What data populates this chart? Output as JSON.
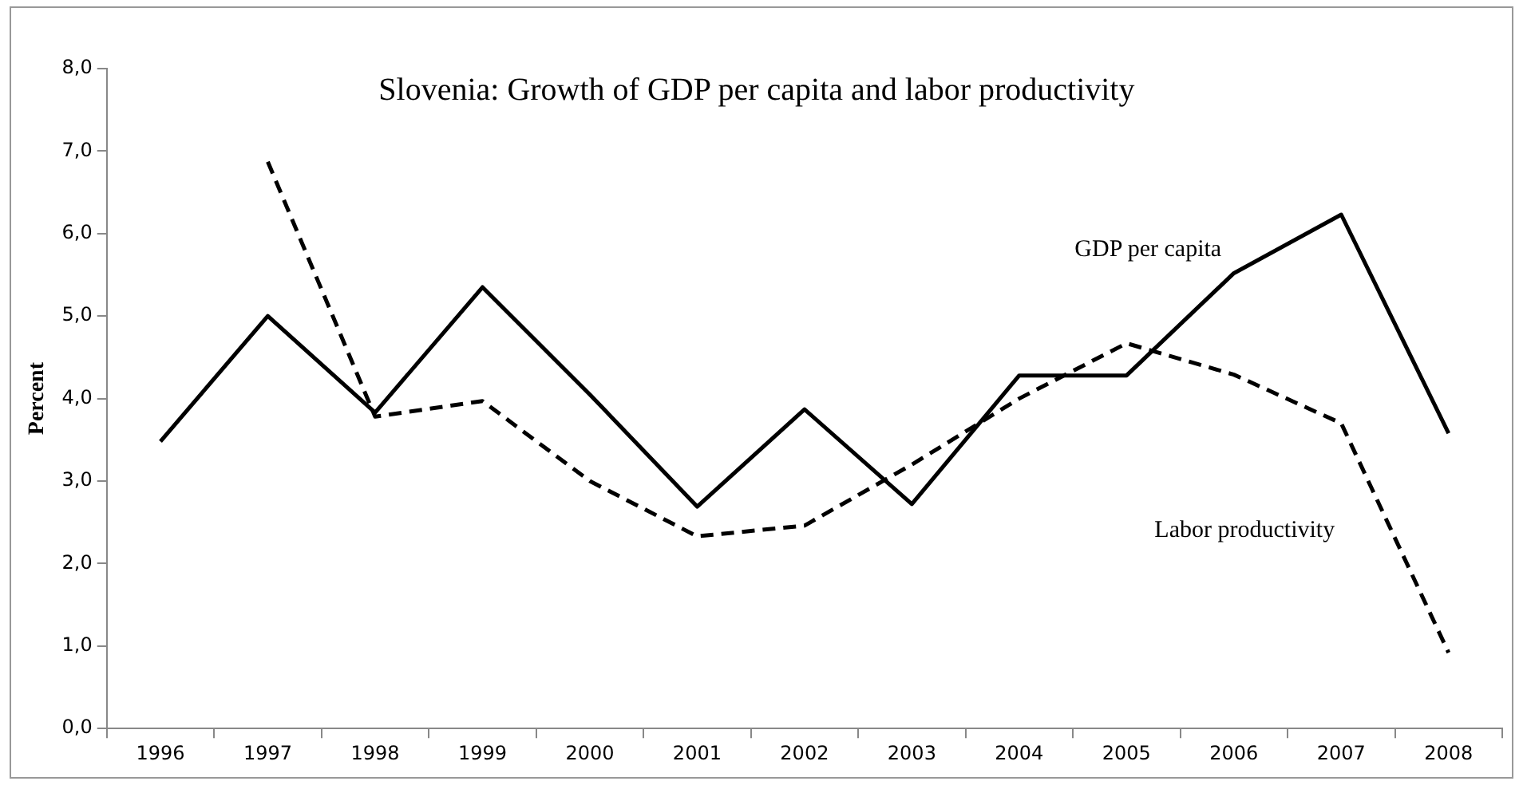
{
  "chart_data": {
    "type": "line",
    "title": "Slovenia: Growth of GDP per capita and labor productivity",
    "ylabel": "Percent",
    "categories": [
      "1996",
      "1997",
      "1998",
      "1999",
      "2000",
      "2001",
      "2002",
      "2003",
      "2004",
      "2005",
      "2006",
      "2007",
      "2008"
    ],
    "series": [
      {
        "name": "GDP per capita",
        "color": "#000000",
        "line_style": "solid",
        "values": [
          3.48,
          5.0,
          3.83,
          5.35,
          4.05,
          2.69,
          3.87,
          2.72,
          4.28,
          4.28,
          5.52,
          6.23,
          3.58
        ]
      },
      {
        "name": "Labor productivity",
        "color": "#000000",
        "line_style": "dashed",
        "values": [
          null,
          6.87,
          3.78,
          3.97,
          3.0,
          2.33,
          2.46,
          3.2,
          4.0,
          4.67,
          4.29,
          3.7,
          0.92
        ]
      }
    ],
    "ylim": [
      0,
      8
    ],
    "yticks": [
      {
        "value": 0,
        "label": "0,0"
      },
      {
        "value": 1,
        "label": "1,0"
      },
      {
        "value": 2,
        "label": "2,0"
      },
      {
        "value": 3,
        "label": "3,0"
      },
      {
        "value": 4,
        "label": "4,0"
      },
      {
        "value": 5,
        "label": "5,0"
      },
      {
        "value": 6,
        "label": "6,0"
      },
      {
        "value": 7,
        "label": "7,0"
      },
      {
        "value": 8,
        "label": "8,0"
      }
    ],
    "grid": false,
    "legend": false,
    "marker": "none"
  }
}
